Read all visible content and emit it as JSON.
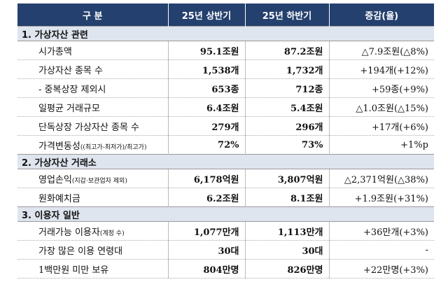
{
  "table": {
    "header": [
      "구 분",
      "25년 상반기",
      "25년 하반기",
      "증감(율)"
    ],
    "sections": [
      {
        "title": "1. 가상자산 관련",
        "rows": [
          {
            "label": "시가총액",
            "cells": [
              "95.1조원",
              "87.2조원",
              "△7.9조원(△8%)"
            ]
          },
          {
            "label": "가상자산 종목 수",
            "cells": [
              "1,538개",
              "1,732개",
              "+194개(+12%)"
            ]
          },
          {
            "label": "- 중복상장 제외시",
            "cells": [
              "653종",
              "712종",
              "+59종(+9%)"
            ]
          },
          {
            "label": "일평균 거래규모",
            "cells": [
              "6.4조원",
              "5.4조원",
              "△1.0조원(△15%)"
            ]
          },
          {
            "label": "단독상장 가상자산 종목 수",
            "cells": [
              "279개",
              "296개",
              "+17개(+6%)"
            ]
          },
          {
            "label": "가격변동성",
            "note": "((최고가-최저가)/최고가)",
            "cells": [
              "72%",
              "73%",
              "+1%p"
            ]
          }
        ]
      },
      {
        "title": "2. 가상자산 거래소",
        "rows": [
          {
            "label": "영업손익",
            "note": "(지갑·보관업자 제외)",
            "cells": [
              "6,178억원",
              "3,807억원",
              "△2,371억원(△38%)"
            ]
          },
          {
            "label": "원화예치금",
            "cells": [
              "6.2조원",
              "8.1조원",
              "+1.9조원(+31%)"
            ]
          }
        ]
      },
      {
        "title": "3. 이용자 일반",
        "rows": [
          {
            "label": "거래가능 이용자",
            "note": "(계정 수)",
            "cells": [
              "1,077만개",
              "1,113만개",
              "+36만개(+3%)"
            ]
          },
          {
            "label": "가장 많은 이용 연령대",
            "cells": [
              "30대",
              "30대",
              "-"
            ]
          },
          {
            "label": "1백만원 미만 보유",
            "cells": [
              "804만명",
              "826만명",
              "+22만명(+3%)"
            ]
          }
        ]
      }
    ]
  }
}
